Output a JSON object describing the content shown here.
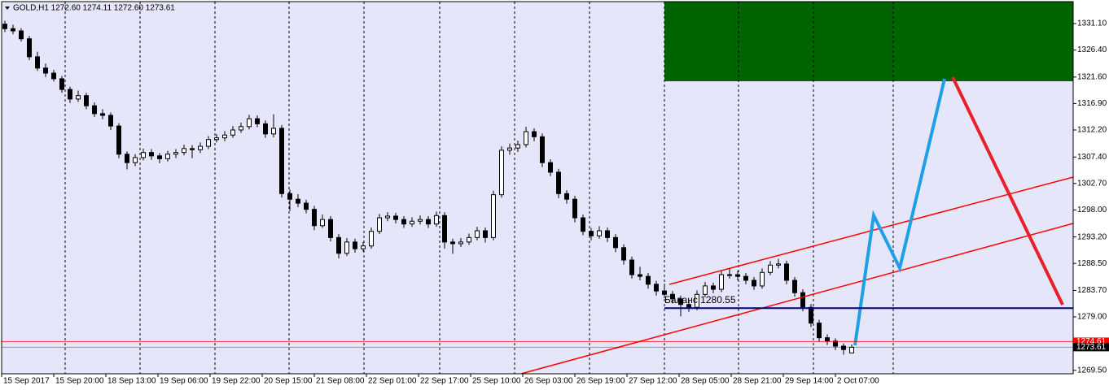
{
  "chart_data": {
    "type": "candlestick",
    "title": "GOLD,H1  1272.60 1274.11 1272.60 1273.61",
    "up_color": "#ffffff",
    "down_color": "#000000",
    "background": "#e6e6fa",
    "ylim": [
      1268.9,
      1335.0
    ],
    "yticks": [
      {
        "value": 1331.1,
        "label": "1331.10"
      },
      {
        "value": 1326.4,
        "label": "1326.40"
      },
      {
        "value": 1321.6,
        "label": "1321.60"
      },
      {
        "value": 1316.9,
        "label": "1316.90"
      },
      {
        "value": 1312.2,
        "label": "1312.20"
      },
      {
        "value": 1307.4,
        "label": "1307.40"
      },
      {
        "value": 1302.7,
        "label": "1302.70"
      },
      {
        "value": 1298,
        "label": "1298.00"
      },
      {
        "value": 1293.2,
        "label": "1293.20"
      },
      {
        "value": 1288.5,
        "label": "1288.50"
      },
      {
        "value": 1283.7,
        "label": "1283.70"
      },
      {
        "value": 1279,
        "label": "1279.00"
      },
      {
        "value": 1269.5,
        "label": "1269.50"
      }
    ],
    "xtick_labels": [
      "15 Sep 2017",
      "15 Sep 20:00",
      "18 Sep 13:00",
      "19 Sep 06:00",
      "19 Sep 22:00",
      "20 Sep 15:00",
      "21 Sep 08:00",
      "22 Sep 01:00",
      "22 Sep 17:00",
      "25 Sep 10:00",
      "26 Sep 03:00",
      "26 Sep 19:00",
      "27 Sep 12:00",
      "28 Sep 05:00",
      "28 Sep 21:00",
      "29 Sep 14:00",
      "2 Oct 07:00"
    ],
    "price_lines": [
      {
        "value": 1274.61,
        "label": "1274.61",
        "color": "#ff0000"
      },
      {
        "value": 1273.61,
        "label": "1273.61",
        "color": "#000000"
      }
    ],
    "balance_line": {
      "label": "Баланс 1280.55",
      "value": 1280.55,
      "color": "#000080"
    },
    "candles": [
      [
        1331.0,
        1331.6,
        1329.6,
        1330.2
      ],
      [
        1330.2,
        1330.9,
        1329.2,
        1329.8
      ],
      [
        1329.8,
        1330.3,
        1327.9,
        1328.4
      ],
      [
        1328.4,
        1328.9,
        1324.6,
        1325.2
      ],
      [
        1325.2,
        1326.1,
        1322.7,
        1323.2
      ],
      [
        1323.2,
        1324.0,
        1321.6,
        1322.3
      ],
      [
        1322.3,
        1322.9,
        1320.8,
        1321.3
      ],
      [
        1321.3,
        1321.8,
        1318.8,
        1319.4
      ],
      [
        1319.4,
        1319.9,
        1317.0,
        1317.7
      ],
      [
        1317.7,
        1319.2,
        1317.2,
        1318.3
      ],
      [
        1318.3,
        1318.8,
        1315.9,
        1316.5
      ],
      [
        1316.5,
        1317.1,
        1314.5,
        1315.1
      ],
      [
        1315.1,
        1315.9,
        1314.1,
        1314.8
      ],
      [
        1314.8,
        1315.3,
        1312.2,
        1312.9
      ],
      [
        1312.9,
        1313.4,
        1307.2,
        1307.9
      ],
      [
        1307.9,
        1308.4,
        1305.2,
        1306.4
      ],
      [
        1306.4,
        1307.9,
        1305.8,
        1307.3
      ],
      [
        1307.3,
        1308.9,
        1306.8,
        1308.2
      ],
      [
        1308.2,
        1308.8,
        1306.9,
        1307.6
      ],
      [
        1307.6,
        1308.1,
        1306.3,
        1307.1
      ],
      [
        1307.1,
        1308.5,
        1306.6,
        1307.9
      ],
      [
        1307.9,
        1308.8,
        1307.2,
        1308.2
      ],
      [
        1308.2,
        1309.6,
        1307.7,
        1308.9
      ],
      [
        1308.9,
        1309.5,
        1307.2,
        1308.7
      ],
      [
        1308.7,
        1310.0,
        1308.1,
        1309.3
      ],
      [
        1309.3,
        1311.1,
        1308.8,
        1310.5
      ],
      [
        1310.5,
        1311.5,
        1310.0,
        1310.8
      ],
      [
        1310.8,
        1312.0,
        1310.2,
        1311.3
      ],
      [
        1311.3,
        1312.9,
        1310.8,
        1312.2
      ],
      [
        1312.2,
        1313.5,
        1311.7,
        1312.8
      ],
      [
        1312.8,
        1314.9,
        1312.3,
        1314.2
      ],
      [
        1314.2,
        1314.8,
        1312.7,
        1313.3
      ],
      [
        1313.3,
        1313.9,
        1310.8,
        1311.5
      ],
      [
        1311.5,
        1315.0,
        1310.9,
        1312.5
      ],
      [
        1312.5,
        1313.1,
        1300.2,
        1300.9
      ],
      [
        1300.9,
        1301.6,
        1297.8,
        1299.9
      ],
      [
        1299.9,
        1300.8,
        1298.5,
        1299.2
      ],
      [
        1299.2,
        1299.8,
        1297.4,
        1298.1
      ],
      [
        1298.1,
        1298.7,
        1294.4,
        1295.2
      ],
      [
        1295.2,
        1297.2,
        1294.8,
        1296.3
      ],
      [
        1296.3,
        1296.9,
        1292.4,
        1293.1
      ],
      [
        1293.1,
        1293.7,
        1289.4,
        1290.3
      ],
      [
        1290.3,
        1293.0,
        1289.8,
        1292.3
      ],
      [
        1292.3,
        1292.9,
        1290.4,
        1291.1
      ],
      [
        1291.1,
        1292.3,
        1290.6,
        1291.6
      ],
      [
        1291.6,
        1294.9,
        1291.1,
        1294.2
      ],
      [
        1294.2,
        1297.3,
        1293.7,
        1296.6
      ],
      [
        1296.6,
        1297.6,
        1296.0,
        1296.9
      ],
      [
        1296.9,
        1297.5,
        1295.6,
        1296.3
      ],
      [
        1296.3,
        1296.9,
        1294.8,
        1295.5
      ],
      [
        1295.5,
        1296.7,
        1295.0,
        1296.0
      ],
      [
        1296.0,
        1297.0,
        1295.4,
        1296.3
      ],
      [
        1296.3,
        1296.9,
        1294.8,
        1295.5
      ],
      [
        1295.5,
        1297.7,
        1295.0,
        1297.0
      ],
      [
        1297.0,
        1297.6,
        1291.1,
        1292.3
      ],
      [
        1292.3,
        1292.9,
        1290.2,
        1292.0
      ],
      [
        1292.0,
        1293.0,
        1291.4,
        1292.3
      ],
      [
        1292.3,
        1293.8,
        1291.8,
        1293.1
      ],
      [
        1293.1,
        1295.0,
        1292.6,
        1294.3
      ],
      [
        1294.3,
        1294.9,
        1292.2,
        1293.1
      ],
      [
        1293.1,
        1301.4,
        1292.6,
        1300.7
      ],
      [
        1300.7,
        1309.3,
        1300.2,
        1308.6
      ],
      [
        1308.6,
        1309.8,
        1307.8,
        1309.0
      ],
      [
        1309.0,
        1310.3,
        1308.3,
        1309.6
      ],
      [
        1309.6,
        1312.8,
        1309.1,
        1311.9
      ],
      [
        1311.9,
        1312.5,
        1310.2,
        1311.0
      ],
      [
        1311.0,
        1311.6,
        1305.6,
        1306.4
      ],
      [
        1306.4,
        1307.0,
        1304.0,
        1304.7
      ],
      [
        1304.7,
        1305.3,
        1300.1,
        1300.9
      ],
      [
        1300.9,
        1301.5,
        1299.1,
        1299.9
      ],
      [
        1299.9,
        1300.5,
        1295.8,
        1296.6
      ],
      [
        1296.6,
        1297.2,
        1293.5,
        1294.2
      ],
      [
        1294.2,
        1294.8,
        1292.6,
        1293.4
      ],
      [
        1293.4,
        1295.1,
        1292.9,
        1294.3
      ],
      [
        1294.3,
        1294.9,
        1292.3,
        1293.1
      ],
      [
        1293.1,
        1293.7,
        1290.5,
        1291.3
      ],
      [
        1291.3,
        1291.9,
        1288.3,
        1289.1
      ],
      [
        1289.1,
        1289.7,
        1285.8,
        1286.5
      ],
      [
        1286.5,
        1287.9,
        1285.5,
        1286.2
      ],
      [
        1286.2,
        1286.8,
        1284.0,
        1284.8
      ],
      [
        1284.8,
        1285.4,
        1282.8,
        1283.6
      ],
      [
        1283.6,
        1284.9,
        1282.3,
        1283.0
      ],
      [
        1283.0,
        1283.6,
        1281.4,
        1282.2
      ],
      [
        1282.2,
        1282.8,
        1279.1,
        1281.2
      ],
      [
        1281.2,
        1282.0,
        1279.9,
        1280.7
      ],
      [
        1280.7,
        1283.7,
        1280.2,
        1283.0
      ],
      [
        1283.0,
        1285.2,
        1282.5,
        1284.5
      ],
      [
        1284.5,
        1285.1,
        1283.2,
        1283.9
      ],
      [
        1283.9,
        1287.2,
        1283.4,
        1286.5
      ],
      [
        1286.5,
        1287.6,
        1285.8,
        1286.5
      ],
      [
        1286.5,
        1287.2,
        1285.5,
        1286.2
      ],
      [
        1286.2,
        1286.8,
        1284.8,
        1285.5
      ],
      [
        1285.5,
        1286.1,
        1283.8,
        1284.5
      ],
      [
        1284.5,
        1287.6,
        1284.0,
        1286.9
      ],
      [
        1286.9,
        1288.9,
        1286.4,
        1288.2
      ],
      [
        1288.2,
        1289.3,
        1287.6,
        1288.4
      ],
      [
        1288.4,
        1289.0,
        1284.8,
        1285.5
      ],
      [
        1285.5,
        1286.1,
        1282.6,
        1283.3
      ],
      [
        1283.3,
        1283.9,
        1280.0,
        1280.7
      ],
      [
        1280.7,
        1281.3,
        1277.2,
        1277.9
      ],
      [
        1277.9,
        1278.5,
        1274.6,
        1275.3
      ],
      [
        1275.3,
        1275.9,
        1274.0,
        1274.7
      ],
      [
        1274.7,
        1275.2,
        1273.1,
        1273.8
      ],
      [
        1273.8,
        1274.3,
        1272.3,
        1273.2
      ],
      [
        1272.6,
        1274.11,
        1272.6,
        1273.61
      ]
    ]
  }
}
